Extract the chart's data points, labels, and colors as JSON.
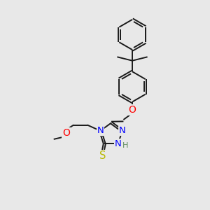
{
  "bg_color": "#e8e8e8",
  "bond_color": "#1a1a1a",
  "atom_colors": {
    "N": "#0000ff",
    "O": "#ff0000",
    "S": "#b8b800",
    "H": "#5a8a5a"
  },
  "lw": 1.4,
  "fs": 8.5,
  "xlim": [
    0,
    10
  ],
  "ylim": [
    0,
    10
  ]
}
